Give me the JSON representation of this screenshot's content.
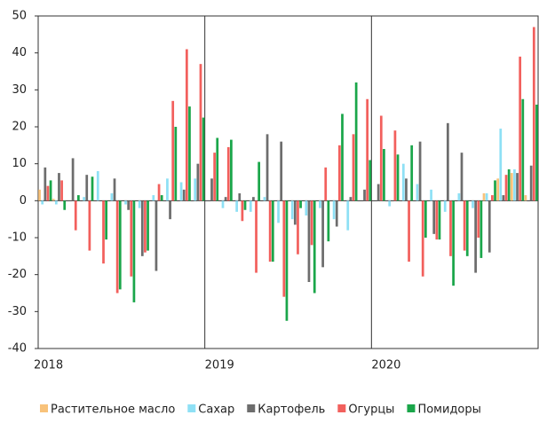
{
  "chart_data": {
    "type": "bar",
    "categories": [
      "2018",
      null,
      null,
      null,
      null,
      null,
      null,
      null,
      null,
      null,
      null,
      null,
      "2019",
      null,
      null,
      null,
      null,
      null,
      null,
      null,
      null,
      null,
      null,
      null,
      "2020",
      null,
      null,
      null,
      null,
      null,
      null,
      null,
      null,
      null,
      null,
      null
    ],
    "series": [
      {
        "name": "Растительное масло",
        "color": "#f8c27a",
        "values": [
          3,
          0.5,
          0,
          0,
          0,
          0,
          0,
          0,
          0,
          0,
          0,
          0,
          0,
          0,
          0,
          0,
          0,
          0,
          0,
          0,
          0,
          0,
          0,
          0,
          0,
          0,
          0,
          0,
          0,
          0,
          0,
          0,
          2,
          6,
          7.5,
          1.5
        ]
      },
      {
        "name": "Сахар",
        "color": "#8ee0f5",
        "values": [
          -1,
          -1,
          0,
          1,
          8,
          2,
          -1,
          -2,
          1.5,
          6,
          5,
          6,
          0,
          -2,
          -3,
          -3,
          1,
          -6,
          -5,
          -4,
          -2,
          -5,
          -8,
          0,
          0,
          -1.5,
          10,
          4.5,
          3,
          -3,
          2,
          -2,
          2,
          19.5,
          8.5,
          0
        ]
      },
      {
        "name": "Картофель",
        "color": "#6d6d6d",
        "values": [
          9,
          7.5,
          11.5,
          7,
          0,
          6,
          -2.5,
          -15,
          -19,
          -5,
          3,
          10,
          6,
          1,
          2,
          1,
          18,
          16,
          -6.5,
          -22,
          -18,
          -7,
          1,
          3,
          4.5,
          0,
          6,
          16,
          -9,
          21,
          13,
          -19.5,
          -14,
          1.5,
          7.5,
          9.5
        ]
      },
      {
        "name": "Огурцы",
        "color": "#f2605d",
        "values": [
          4,
          5.5,
          -8,
          -13.5,
          -17,
          -25,
          -20.5,
          -14,
          4.5,
          27,
          41,
          37,
          13,
          14.5,
          -5.5,
          -19.5,
          -16.5,
          -26,
          -14.5,
          -12,
          9,
          15,
          18,
          27.5,
          23,
          19,
          -16.5,
          -20.5,
          -10.5,
          -15,
          -13.5,
          -10,
          1.5,
          7,
          39,
          47
        ]
      },
      {
        "name": "Помидоры",
        "color": "#1aa64a",
        "values": [
          5.5,
          -2.5,
          1.5,
          6.5,
          -10.5,
          -24,
          -27.5,
          -13.5,
          1.5,
          20,
          25.5,
          22.5,
          17,
          16.5,
          -2.5,
          10.5,
          -16.5,
          -32.5,
          -2,
          -25,
          -11,
          23.5,
          32,
          11,
          14,
          12.5,
          15,
          -10,
          -10.5,
          -23,
          -15,
          -15.5,
          5.5,
          8.5,
          27.5,
          26
        ]
      }
    ],
    "ylim": [
      -40,
      50
    ],
    "yticks": [
      -40,
      -30,
      -20,
      -10,
      0,
      10,
      20,
      30,
      40,
      50
    ],
    "grid": false
  }
}
